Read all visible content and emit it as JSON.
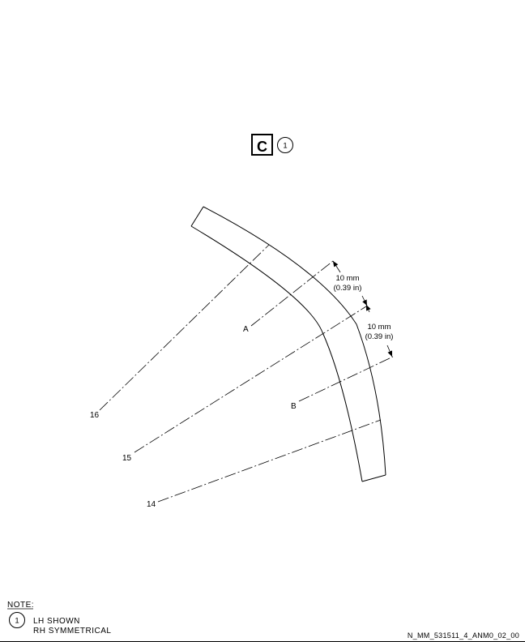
{
  "view": {
    "label": "C",
    "note_ref": "1"
  },
  "stations": {
    "s16": "16",
    "s15": "15",
    "s14": "14"
  },
  "cuts": {
    "a": "A",
    "b": "B"
  },
  "dimensions": {
    "upper": {
      "mm": "10 mm",
      "in": "(0.39 in)"
    },
    "lower": {
      "mm": "10 mm",
      "in": "(0.39 in)"
    }
  },
  "notes": {
    "heading": "NOTE:",
    "items": [
      {
        "number": "1",
        "line1": "LH SHOWN",
        "line2": "RH SYMMETRICAL"
      }
    ]
  },
  "drawing_code": "N_MM_531511_4_ANM0_02_00"
}
